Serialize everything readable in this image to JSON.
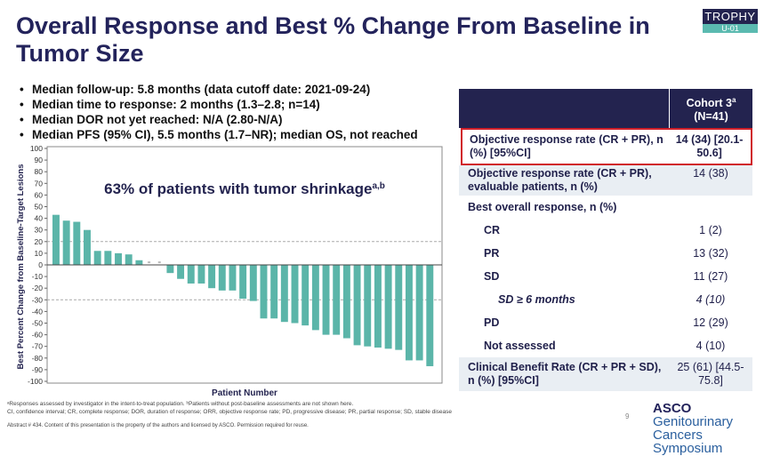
{
  "title": "Overall Response and Best % Change From Baseline in Tumor Size",
  "logo": {
    "name": "TROPHY",
    "sub": "U-01"
  },
  "bullets": [
    "Median follow-up: 5.8 months (data cutoff date: 2021-09-24)",
    "Median time to response: 2 months (1.3–2.8; n=14)",
    "Median DOR not yet reached: N/A (2.80-N/A)",
    "Median PFS (95% CI), 5.5 months (1.7–NR); median OS, not reached"
  ],
  "chart_data": {
    "type": "bar",
    "title": "63% of patients with tumor shrinkage",
    "title_sup": "a,b",
    "xlabel": "Patient Number",
    "ylabel": "Best Percent Change from Baseline-Target Lesions",
    "ylim": [
      -100,
      100
    ],
    "yticks": [
      100,
      90,
      80,
      70,
      60,
      50,
      40,
      30,
      20,
      10,
      0,
      -10,
      -20,
      -30,
      -40,
      -50,
      -60,
      -70,
      -80,
      -90,
      -100
    ],
    "reference_lines": [
      20,
      -30
    ],
    "bar_color": "#5bb5a9",
    "values": [
      43,
      38,
      37,
      30,
      12,
      12,
      10,
      9,
      4,
      0,
      0,
      -7,
      -12,
      -16,
      -16,
      -20,
      -22,
      -22,
      -29,
      -31,
      -46,
      -46,
      -49,
      -50,
      -52,
      -56,
      -60,
      -60,
      -63,
      -69,
      -70,
      -71,
      -72,
      -73,
      -82,
      -82,
      -87
    ]
  },
  "table": {
    "header": {
      "label": "",
      "col": "Cohort 3",
      "col_sup": "a",
      "n": "(N=41)"
    },
    "rows": [
      {
        "label": "Objective response rate (CR + PR), n (%) [95%CI]",
        "value": "14 (34) [20.1-50.6]",
        "highlight": true
      },
      {
        "label": "Objective response rate (CR + PR), evaluable patients, n (%)",
        "value": "14 (38)"
      },
      {
        "label": "Best overall response, n (%)",
        "value": ""
      },
      {
        "label": "CR",
        "value": "1 (2)"
      },
      {
        "label": "PR",
        "value": "13 (32)"
      },
      {
        "label": "SD",
        "value": "11 (27)"
      },
      {
        "label": "SD ≥ 6 months",
        "value": "4 (10)"
      },
      {
        "label": "PD",
        "value": "12 (29)"
      },
      {
        "label": "Not assessed",
        "value": "4 (10)"
      },
      {
        "label": "Clinical Benefit Rate (CR + PR + SD), n (%) [95%CI]",
        "value": "25 (61) [44.5-75.8]"
      }
    ]
  },
  "footnotes": [
    "ᵃResponses assessed by investigator in the intent-to-treat population. ᵇPatients without post-baseline assessments are not shown here.",
    "CI, confidence interval; CR, complete response; DOR, duration of response; ORR, objective response rate; PD, progressive disease; PR, partial response; SD, stable disease"
  ],
  "abstract": "Abstract # 434. Content of this presentation is the property of the authors and licensed by ASCO. Permission required for reuse.",
  "page": "9",
  "asco": {
    "a": "ASCO",
    "b": "Genitourinary",
    "c": "Cancers Symposium"
  }
}
